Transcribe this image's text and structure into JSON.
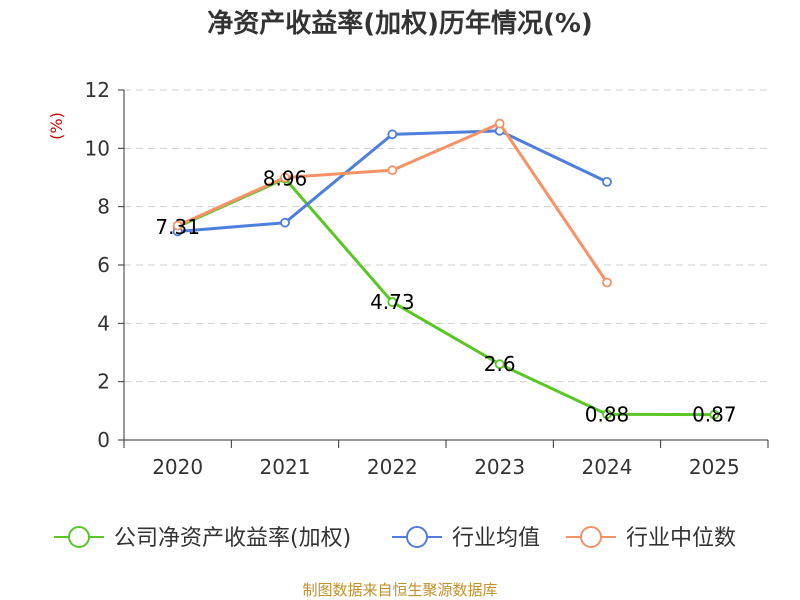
{
  "chart_data": {
    "type": "line",
    "title": "净资产收益率(加权)历年情况(%)",
    "ylabel": "(%)",
    "xlabel": "",
    "categories": [
      "2020",
      "2021",
      "2022",
      "2023",
      "2024",
      "2025"
    ],
    "ylim": [
      0,
      12
    ],
    "yticks": [
      0,
      2,
      4,
      6,
      8,
      10,
      12
    ],
    "grid": true,
    "legend_position": "bottom",
    "series": [
      {
        "name": "公司净资产收益率(加权)",
        "color": "#5ac725",
        "values": [
          7.31,
          8.96,
          4.73,
          2.6,
          0.88,
          0.87
        ],
        "labels": [
          "7.31",
          "8.96",
          "4.73",
          "2.6",
          "0.88",
          "0.87"
        ],
        "show_labels": true
      },
      {
        "name": "行业均值",
        "color": "#4e7fdc",
        "values": [
          7.15,
          7.45,
          10.48,
          10.6,
          8.85,
          null
        ],
        "show_labels": false
      },
      {
        "name": "行业中位数",
        "color": "#f59366",
        "values": [
          7.35,
          9.0,
          9.25,
          10.85,
          5.4,
          null
        ],
        "show_labels": false
      }
    ]
  },
  "source": "制图数据来自恒生聚源数据库"
}
